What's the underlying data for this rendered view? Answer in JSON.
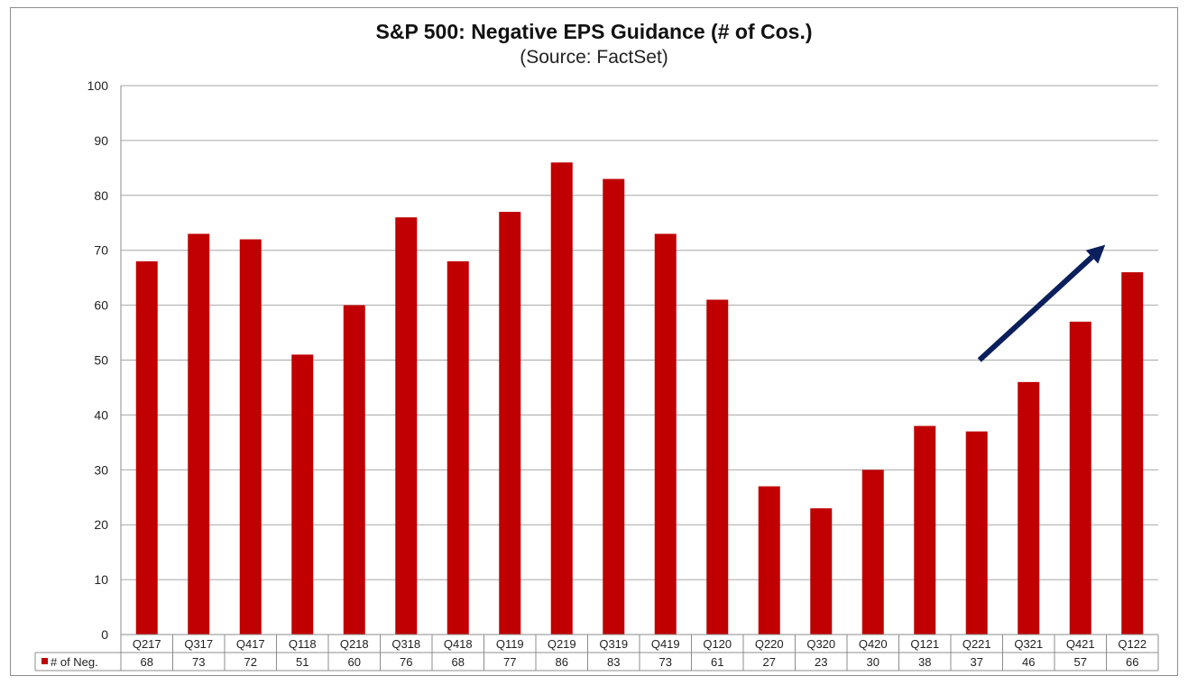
{
  "chart_data": {
    "type": "bar",
    "title": "S&P 500: Negative EPS Guidance (# of Cos.)",
    "subtitle": "(Source: FactSet)",
    "xlabel": "",
    "ylabel": "",
    "ylim": [
      0,
      100
    ],
    "yticks": [
      0,
      10,
      20,
      30,
      40,
      50,
      60,
      70,
      80,
      90,
      100
    ],
    "grid": true,
    "categories": [
      "Q217",
      "Q317",
      "Q417",
      "Q118",
      "Q218",
      "Q318",
      "Q418",
      "Q119",
      "Q219",
      "Q319",
      "Q419",
      "Q120",
      "Q220",
      "Q320",
      "Q420",
      "Q121",
      "Q221",
      "Q321",
      "Q421",
      "Q122"
    ],
    "series": [
      {
        "name": "# of Neg.",
        "color": "#c00000",
        "values": [
          68,
          73,
          72,
          51,
          60,
          76,
          68,
          77,
          86,
          83,
          73,
          61,
          27,
          23,
          30,
          38,
          37,
          46,
          57,
          66
        ]
      }
    ],
    "data_table": true,
    "annotation": {
      "type": "arrow",
      "color": "#0b1f5c",
      "from": [
        "Q221",
        50
      ],
      "to": [
        "Q122",
        71
      ]
    }
  }
}
